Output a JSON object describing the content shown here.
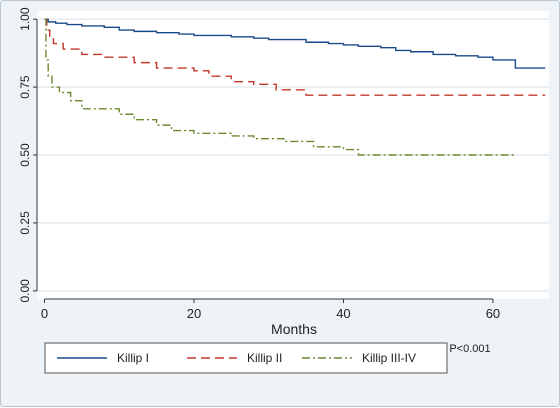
{
  "chart_data": {
    "type": "line",
    "subtype": "kaplan-meier-step",
    "xlabel": "Months",
    "ylabel": "",
    "xlim": [
      -1,
      67.5
    ],
    "ylim": [
      -0.03,
      1.03
    ],
    "x_ticks": [
      0,
      20,
      40,
      60
    ],
    "x_tick_labels": [
      "0",
      "20",
      "40",
      "60"
    ],
    "y_ticks": [
      0,
      0.25,
      0.5,
      0.75,
      1.0
    ],
    "y_tick_labels": [
      "0.00",
      "0.25",
      "0.50",
      "0.75",
      "1.00"
    ],
    "grid": "horizontal",
    "legend_position": "bottom",
    "annotation": "P<0.001",
    "series": [
      {
        "name": "Killip I",
        "color": "#1a4a8a",
        "dash": "solid",
        "x": [
          0,
          0.5,
          1.5,
          3,
          5,
          8,
          10,
          12,
          15,
          18,
          20,
          25,
          28,
          30,
          35,
          38,
          40,
          42,
          45,
          47,
          49,
          52,
          55,
          58,
          60,
          63,
          67
        ],
        "y": [
          1.0,
          0.99,
          0.985,
          0.98,
          0.975,
          0.97,
          0.96,
          0.955,
          0.95,
          0.945,
          0.94,
          0.935,
          0.93,
          0.925,
          0.915,
          0.91,
          0.905,
          0.9,
          0.895,
          0.885,
          0.88,
          0.87,
          0.865,
          0.86,
          0.85,
          0.82,
          0.82
        ]
      },
      {
        "name": "Killip II",
        "color": "#c0392b",
        "dash": "long-dash",
        "x": [
          0,
          0.3,
          0.7,
          1.2,
          2.5,
          5,
          8,
          12,
          15,
          20,
          22,
          25,
          28,
          31,
          35,
          67
        ],
        "y": [
          1.0,
          0.96,
          0.93,
          0.91,
          0.89,
          0.87,
          0.86,
          0.84,
          0.82,
          0.81,
          0.79,
          0.77,
          0.76,
          0.74,
          0.72,
          0.72
        ]
      },
      {
        "name": "Killip III-IV",
        "color": "#6a8a30",
        "dash": "dash-dot",
        "x": [
          0,
          0.2,
          0.5,
          1.0,
          2.0,
          3.5,
          5,
          10,
          12,
          15,
          17,
          20,
          25,
          28,
          32,
          36,
          40,
          42,
          63
        ],
        "y": [
          1.0,
          0.85,
          0.79,
          0.75,
          0.73,
          0.7,
          0.67,
          0.65,
          0.63,
          0.61,
          0.59,
          0.58,
          0.57,
          0.56,
          0.55,
          0.53,
          0.52,
          0.5,
          0.5
        ]
      }
    ]
  }
}
